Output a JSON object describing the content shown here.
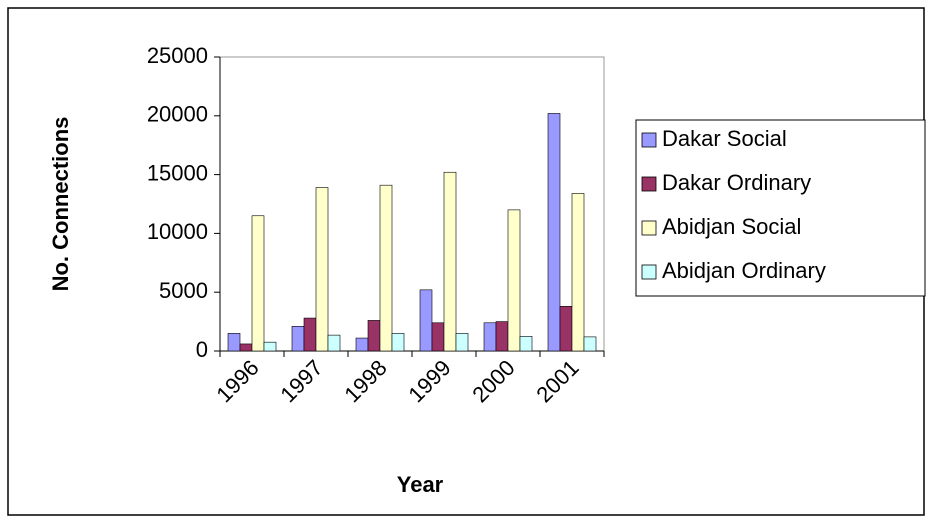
{
  "chart_data": {
    "type": "bar",
    "x_label": "Year",
    "y_label": "No. Connections",
    "categories": [
      "1996",
      "1997",
      "1998",
      "1999",
      "2000",
      "2001"
    ],
    "series": [
      {
        "name": "Dakar Social",
        "color": "#9999ff",
        "values": [
          1500,
          2100,
          1100,
          5200,
          2400,
          20200
        ]
      },
      {
        "name": "Dakar Ordinary",
        "color": "#993366",
        "values": [
          600,
          2800,
          2600,
          2400,
          2500,
          3800
        ]
      },
      {
        "name": "Abidjan Social",
        "color": "#ffffcc",
        "values": [
          11500,
          13900,
          14100,
          15200,
          12000,
          13400
        ]
      },
      {
        "name": "Abidjan Ordinary",
        "color": "#ccffff",
        "values": [
          750,
          1350,
          1500,
          1500,
          1250,
          1200
        ]
      }
    ],
    "ylim": [
      0,
      25000
    ],
    "yticks": [
      0,
      5000,
      10000,
      15000,
      20000,
      25000
    ],
    "legend": "right"
  }
}
